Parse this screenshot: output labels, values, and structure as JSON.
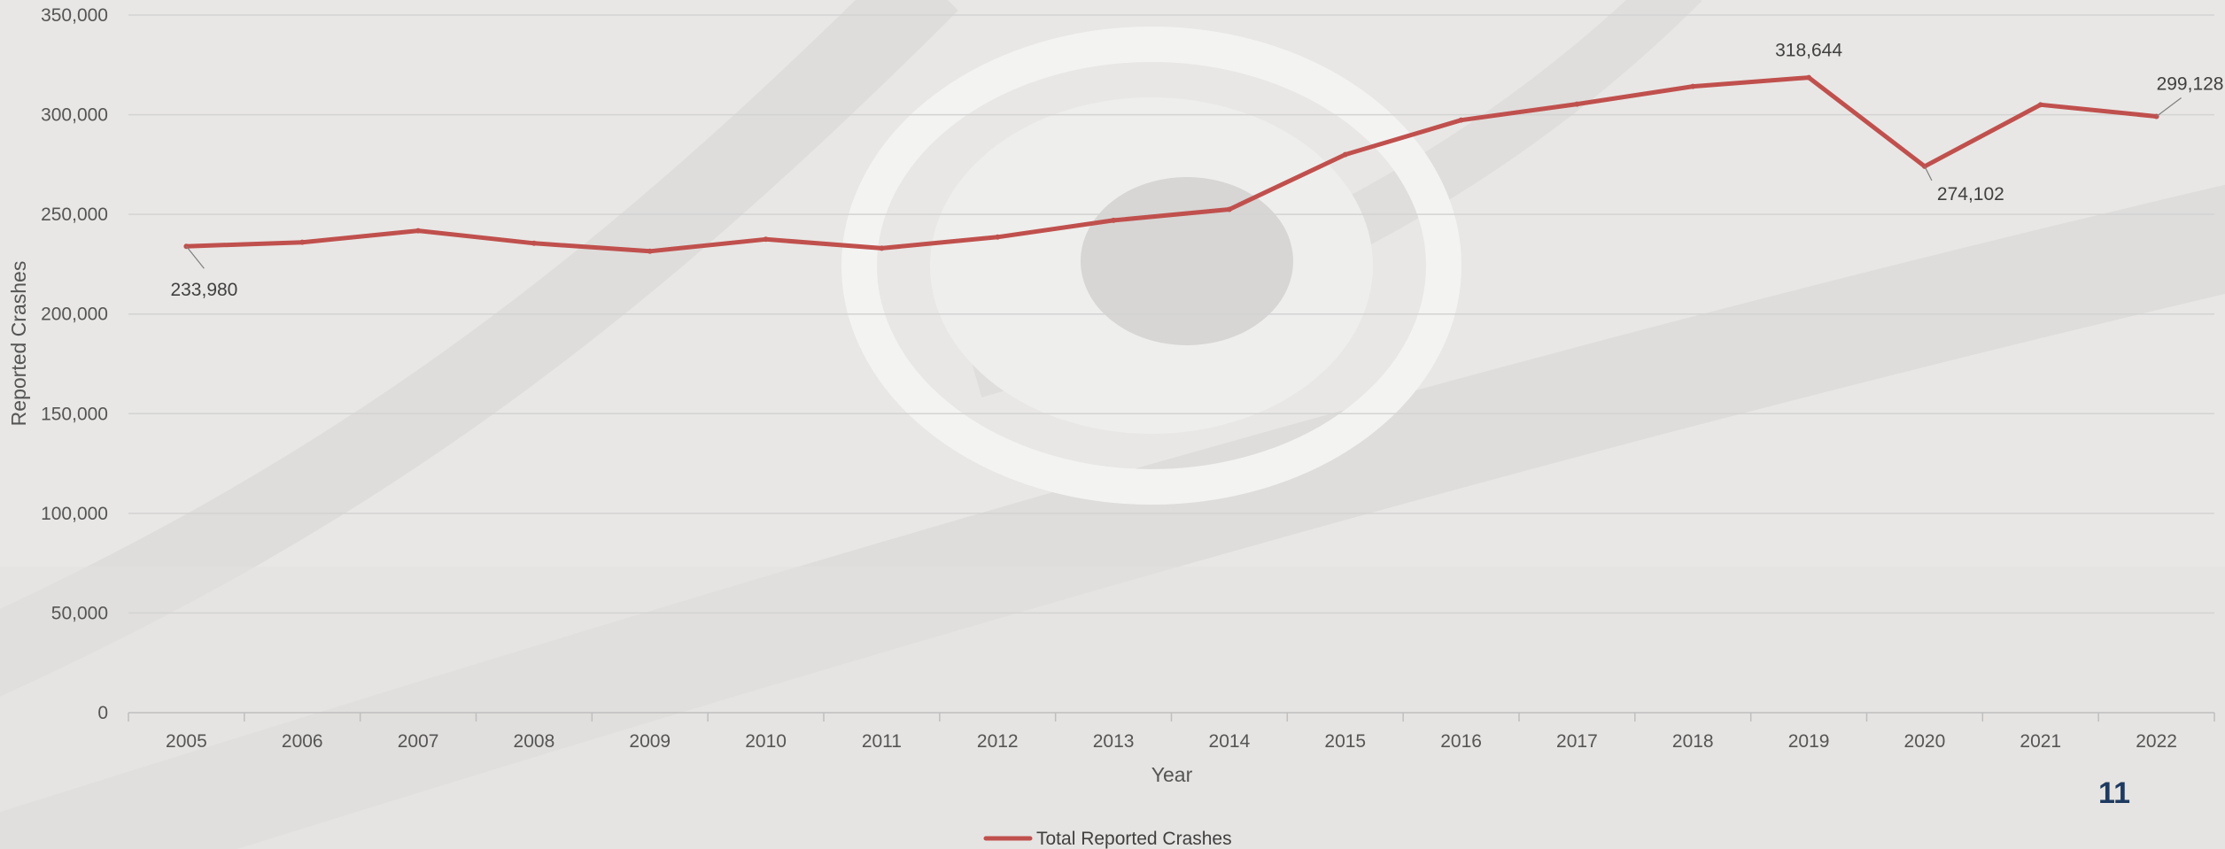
{
  "chart_data": {
    "type": "line",
    "xlabel": "Year",
    "ylabel": "Reported Crashes",
    "ylim": [
      0,
      350000
    ],
    "y_ticks": [
      0,
      50000,
      100000,
      150000,
      200000,
      250000,
      300000,
      350000
    ],
    "grid": true,
    "legend_placement": "bottom-center",
    "categories": [
      "2005",
      "2006",
      "2007",
      "2008",
      "2009",
      "2010",
      "2011",
      "2012",
      "2013",
      "2014",
      "2015",
      "2016",
      "2017",
      "2018",
      "2019",
      "2020",
      "2021",
      "2022"
    ],
    "series": [
      {
        "name": "Total Reported Crashes",
        "color": "#c0504d",
        "values": [
          233980,
          236000,
          241800,
          235500,
          231500,
          237500,
          233000,
          238600,
          247000,
          252500,
          280000,
          297300,
          305300,
          314200,
          318644,
          274102,
          305000,
          299128
        ]
      }
    ],
    "annotations": [
      {
        "category": "2005",
        "label": "233,980",
        "placement": "below"
      },
      {
        "category": "2019",
        "label": "318,644",
        "placement": "above"
      },
      {
        "category": "2020",
        "label": "274,102",
        "placement": "below-right"
      },
      {
        "category": "2022",
        "label": "299,128",
        "placement": "above-right"
      }
    ]
  },
  "page": {
    "number": "11"
  }
}
